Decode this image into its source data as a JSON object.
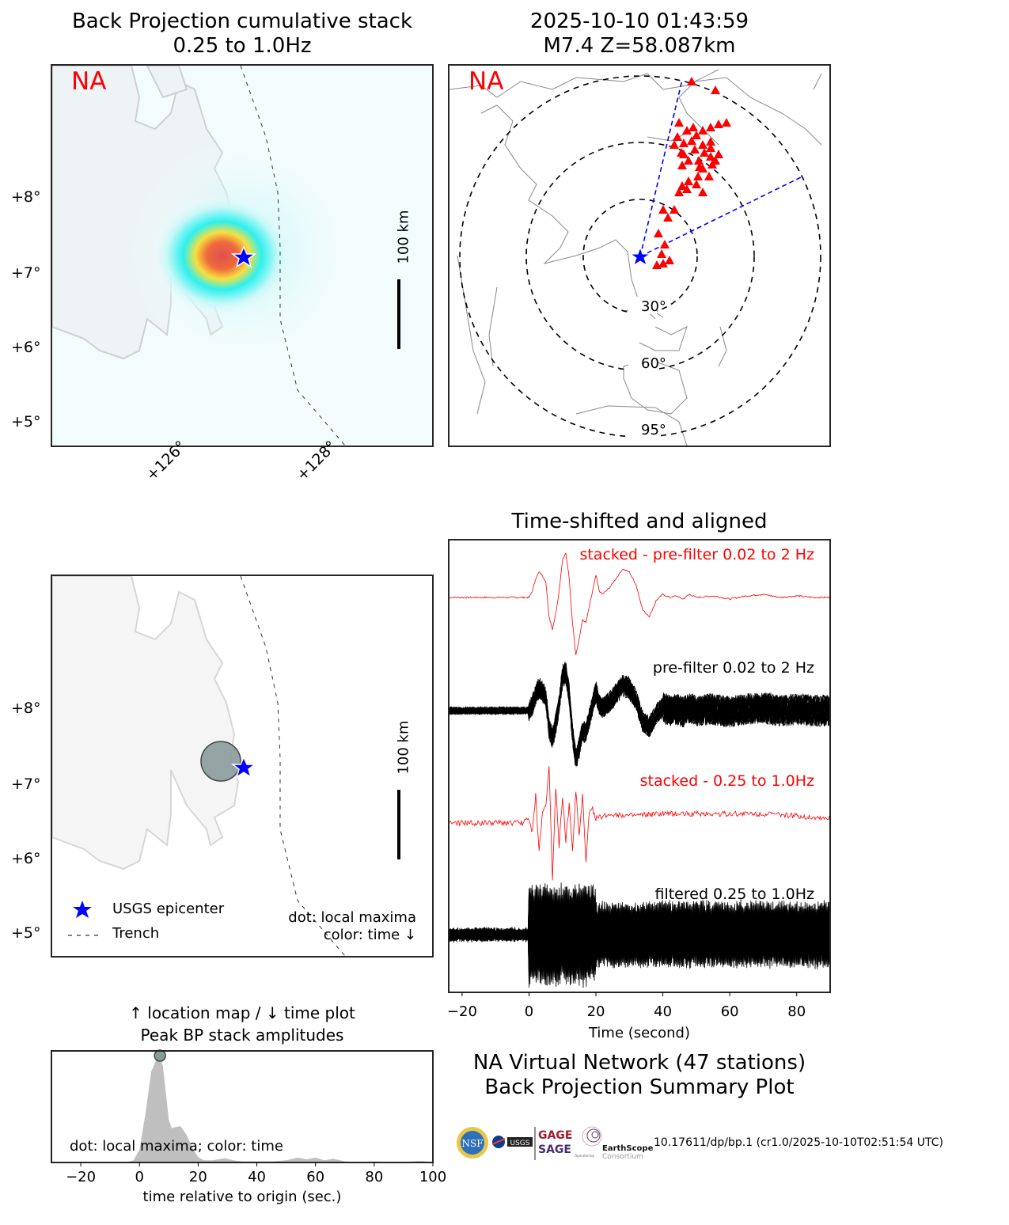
{
  "panel_bp": {
    "title_line1": "Back Projection cumulative stack",
    "title_line2": "0.25 to 1.0Hz",
    "network_label": "NA",
    "scale_label": "100 km",
    "lat_ticks": [
      "+8°",
      "+7°",
      "+6°",
      "+5°"
    ],
    "lon_ticks": [
      "+126°",
      "+128°"
    ]
  },
  "panel_global": {
    "title_line1": "2025-10-10 01:43:59",
    "title_line2": "M7.4 Z=58.087km",
    "network_label": "NA",
    "ring_labels": [
      "30°",
      "60°",
      "95°"
    ],
    "station_marker": "red-triangle",
    "epicenter_marker": "blue-star"
  },
  "panel_location": {
    "scale_label": "100 km",
    "lat_ticks": [
      "+8°",
      "+7°",
      "+6°",
      "+5°"
    ],
    "legend": [
      {
        "symbol": "blue-star",
        "label": "USGS epicenter"
      },
      {
        "symbol": "dashed-line",
        "label": "Trench"
      }
    ],
    "note_line1": "dot: local maxima",
    "note_line2": "color: time ↓"
  },
  "panel_peak": {
    "title_line1": "↑ location map / ↓ time plot",
    "title_line2": "Peak BP stack amplitudes",
    "note": "dot: local maxima; color: time"
  },
  "panel_traces": {
    "title": "Time-shifted and aligned",
    "labels": [
      {
        "text": "stacked - pre-filter 0.02 to 2 Hz",
        "color": "#ff0000"
      },
      {
        "text": "pre-filter 0.02 to 2 Hz",
        "color": "#000000"
      },
      {
        "text": "stacked - 0.25 to 1.0Hz",
        "color": "#ff0000"
      },
      {
        "text": "filtered 0.25 to 1.0Hz",
        "color": "#000000"
      }
    ]
  },
  "summary": {
    "line1": "NA Virtual Network (47 stations)",
    "line2": "Back Projection Summary Plot",
    "citation": "10.17611/dp/bp.1 (cr1.0/2025-10-10T02:51:54 UTC)",
    "logos": [
      "NSF",
      "NASA",
      "USGS",
      "GAGE",
      "SAGE",
      "EarthScope",
      "Consortium",
      "Operated by"
    ]
  },
  "chart_data": [
    {
      "type": "line",
      "name": "traces",
      "title": "Time-shifted and aligned",
      "xlabel": "Time (second)",
      "ylabel": "",
      "xlim": [
        -24,
        90
      ],
      "x_ticks": [
        -20,
        0,
        20,
        40,
        60,
        80
      ],
      "x_tick_labels": [
        "−20",
        "0",
        "20",
        "40",
        "60",
        "80"
      ],
      "series": [
        {
          "name": "stacked - pre-filter 0.02 to 2 Hz",
          "color": "#ff0000",
          "x": [
            -24,
            -2,
            0,
            1,
            2,
            3,
            4,
            5,
            6,
            7,
            8,
            9,
            10,
            11,
            12,
            13,
            14,
            15,
            16,
            17,
            18,
            19,
            20,
            21,
            22,
            24,
            26,
            28,
            30,
            32,
            34,
            36,
            38,
            40,
            42,
            44,
            46,
            48,
            50,
            55,
            60,
            65,
            70,
            75,
            80,
            85,
            90
          ],
          "y": [
            0,
            0,
            0,
            0.2,
            0.6,
            0.8,
            0.7,
            0.5,
            -0.6,
            -1.0,
            -0.5,
            0.2,
            1.2,
            1.4,
            0.6,
            -0.8,
            -1.8,
            -1.3,
            -0.7,
            -0.8,
            -0.3,
            0.2,
            0.7,
            0.2,
            0.1,
            0.3,
            0.6,
            0.9,
            0.8,
            0.4,
            -0.4,
            -0.6,
            -0.1,
            0.1,
            0.0,
            0.05,
            -0.05,
            0.1,
            0.0,
            0.05,
            -0.05,
            0.05,
            0.1,
            0.0,
            0.05,
            0.0,
            0.0
          ]
        },
        {
          "name": "pre-filter 0.02 to 2 Hz (47 station traces)",
          "color": "#000000",
          "stations": 47,
          "note": "overlay of aligned station traces, same envelope as stacked"
        },
        {
          "name": "stacked - 0.25 to 1.0Hz",
          "color": "#ff0000",
          "x": [
            -24,
            -2,
            0,
            1,
            2,
            3,
            4,
            5,
            6,
            7,
            8,
            9,
            10,
            11,
            12,
            13,
            14,
            15,
            16,
            17,
            18,
            19,
            20,
            25,
            30,
            40,
            50,
            60,
            70,
            80,
            90
          ],
          "y": [
            0,
            0,
            0.1,
            -0.2,
            0.6,
            -0.6,
            0.2,
            0.4,
            1.2,
            -1.2,
            0.8,
            -0.5,
            0.6,
            -0.4,
            0.4,
            -0.6,
            0.7,
            -0.3,
            0.6,
            -0.8,
            0.2,
            0.3,
            0.1,
            0.2,
            0.15,
            0.2,
            0.2,
            0.2,
            0.2,
            0.15,
            0.1
          ]
        },
        {
          "name": "filtered 0.25 to 1.0Hz (47 station traces)",
          "color": "#000000",
          "stations": 47,
          "note": "overlay of aligned station traces, energy onset at 0 s"
        }
      ]
    },
    {
      "type": "area",
      "name": "peak_bp_stack",
      "title": "Peak BP stack amplitudes",
      "xlabel": "time relative to origin (sec.)",
      "ylabel": "",
      "xlim": [
        -30,
        100
      ],
      "ylim": [
        0,
        1
      ],
      "x_ticks": [
        -20,
        0,
        20,
        40,
        60,
        80,
        100
      ],
      "x_tick_labels": [
        "−20",
        "0",
        "20",
        "40",
        "60",
        "80",
        "100"
      ],
      "x": [
        -30,
        -5,
        -2,
        0,
        2,
        4,
        6,
        7,
        8,
        10,
        11,
        12,
        14,
        16,
        18,
        20,
        22,
        25,
        29,
        32,
        35,
        40,
        45,
        50,
        54,
        57,
        60,
        63,
        66,
        70,
        75,
        80,
        85,
        90,
        96,
        100
      ],
      "y": [
        0,
        0,
        0.02,
        0.12,
        0.45,
        0.85,
        0.98,
        1.0,
        0.9,
        0.4,
        0.32,
        0.33,
        0.34,
        0.26,
        0.14,
        0.05,
        0.02,
        0.02,
        0.04,
        0.02,
        0.01,
        0.01,
        0.01,
        0.02,
        0.045,
        0.03,
        0.045,
        0.02,
        0.035,
        0.01,
        0.005,
        0.01,
        0.005,
        0.005,
        0.015,
        0.0
      ],
      "local_maxima": [
        {
          "t": 7,
          "amplitude": 1.0
        }
      ]
    }
  ]
}
